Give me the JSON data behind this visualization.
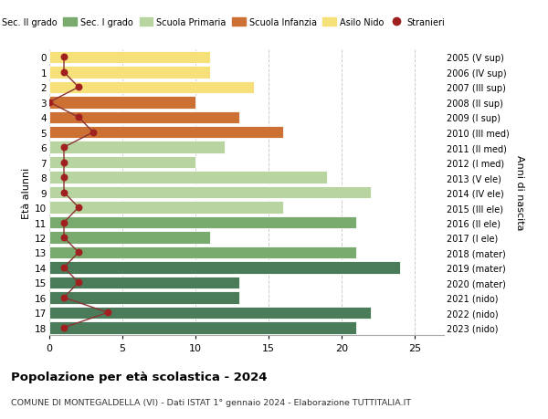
{
  "ages_top_to_bottom": [
    18,
    17,
    16,
    15,
    14,
    13,
    12,
    11,
    10,
    9,
    8,
    7,
    6,
    5,
    4,
    3,
    2,
    1,
    0
  ],
  "years_top_to_bottom": [
    "2005 (V sup)",
    "2006 (IV sup)",
    "2007 (III sup)",
    "2008 (II sup)",
    "2009 (I sup)",
    "2010 (III med)",
    "2011 (II med)",
    "2012 (I med)",
    "2013 (V ele)",
    "2014 (IV ele)",
    "2015 (III ele)",
    "2016 (II ele)",
    "2017 (I ele)",
    "2018 (mater)",
    "2019 (mater)",
    "2020 (mater)",
    "2021 (nido)",
    "2022 (nido)",
    "2023 (nido)"
  ],
  "bar_values_top_to_bottom": [
    21,
    22,
    13,
    13,
    24,
    21,
    11,
    21,
    16,
    22,
    19,
    10,
    12,
    16,
    13,
    10,
    14,
    11,
    11
  ],
  "stranieri_top_to_bottom": [
    1,
    4,
    1,
    2,
    1,
    2,
    1,
    1,
    2,
    1,
    1,
    1,
    1,
    3,
    2,
    0,
    2,
    1,
    1
  ],
  "bar_colors_top_to_bottom": [
    "#4a7c59",
    "#4a7c59",
    "#4a7c59",
    "#4a7c59",
    "#4a7c59",
    "#7aab6e",
    "#7aab6e",
    "#7aab6e",
    "#b8d4a0",
    "#b8d4a0",
    "#b8d4a0",
    "#b8d4a0",
    "#b8d4a0",
    "#cc7033",
    "#cc7033",
    "#cc7033",
    "#f5e07a",
    "#f5e07a",
    "#f5e07a"
  ],
  "legend_labels": [
    "Sec. II grado",
    "Sec. I grado",
    "Scuola Primaria",
    "Scuola Infanzia",
    "Asilo Nido",
    "Stranieri"
  ],
  "legend_colors": [
    "#4a7c59",
    "#7aab6e",
    "#b8d4a0",
    "#cc7033",
    "#f5e07a",
    "#a02020"
  ],
  "stranieri_color": "#a02020",
  "line_color": "#8b3333",
  "ylabel_left": "Età alunni",
  "ylabel_right": "Anni di nascita",
  "title": "Popolazione per età scolastica - 2024",
  "subtitle": "COMUNE DI MONTEGALDELLA (VI) - Dati ISTAT 1° gennaio 2024 - Elaborazione TUTTITALIA.IT",
  "xlim": [
    0,
    27
  ],
  "xticks": [
    0,
    5,
    10,
    15,
    20,
    25
  ],
  "background_color": "#ffffff",
  "grid_color": "#cccccc"
}
